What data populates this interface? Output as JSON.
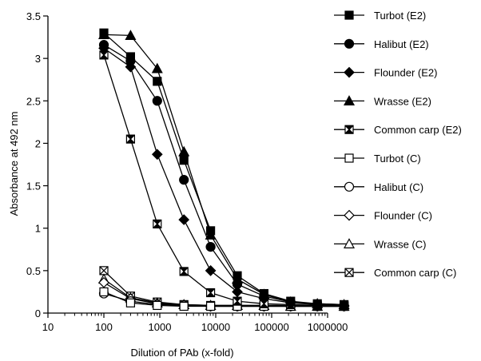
{
  "chart_data": {
    "type": "line",
    "xlabel": "Dilution of PAb (x-fold)",
    "ylabel": "Absorbance at  492 nm",
    "xscale": "log",
    "xlim": [
      10,
      1000000
    ],
    "ylim": [
      0,
      3.5
    ],
    "x_ticks": [
      10,
      100,
      1000,
      10000,
      100000,
      1000000
    ],
    "x_tick_labels": [
      "10",
      "100",
      "1000",
      "10000",
      "100000",
      "1000000"
    ],
    "y_ticks": [
      0,
      0.5,
      1,
      1.5,
      2,
      2.5,
      3,
      3.5
    ],
    "y_tick_labels": [
      "0",
      "0.5",
      "1",
      "1.5",
      "2",
      "2.5",
      "3",
      "3.5"
    ],
    "grid": false,
    "legend_position": "right",
    "x": [
      100,
      300,
      900,
      2700,
      8100,
      24300,
      72900,
      218700,
      656100,
      1968300
    ],
    "series": [
      {
        "name": "Turbot (E2)",
        "marker": "square-filled",
        "values": [
          3.3,
          3.02,
          2.73,
          1.8,
          0.97,
          0.44,
          0.23,
          0.14,
          0.11,
          0.1
        ]
      },
      {
        "name": "Halibut (E2)",
        "marker": "circle-filled",
        "values": [
          3.16,
          2.97,
          2.5,
          1.57,
          0.78,
          0.34,
          0.2,
          0.13,
          0.1,
          0.09
        ]
      },
      {
        "name": "Flounder (E2)",
        "marker": "diamond-filled",
        "values": [
          3.12,
          2.9,
          1.87,
          1.1,
          0.5,
          0.25,
          0.17,
          0.12,
          0.1,
          0.09
        ]
      },
      {
        "name": "Wrasse (E2)",
        "marker": "triangle-filled",
        "values": [
          3.28,
          3.27,
          2.88,
          1.9,
          0.92,
          0.4,
          0.22,
          0.13,
          0.11,
          0.1
        ]
      },
      {
        "name": "Common carp (E2)",
        "marker": "bowtie-square",
        "values": [
          3.04,
          2.05,
          1.05,
          0.49,
          0.24,
          0.14,
          0.11,
          0.1,
          0.09,
          0.09
        ]
      },
      {
        "name": "Turbot (C)",
        "marker": "square-open",
        "values": [
          0.25,
          0.12,
          0.09,
          0.08,
          0.08,
          0.08,
          0.08,
          0.08,
          0.08,
          0.08
        ]
      },
      {
        "name": "Halibut (C)",
        "marker": "circle-open",
        "values": [
          0.23,
          0.14,
          0.1,
          0.09,
          0.08,
          0.08,
          0.08,
          0.08,
          0.08,
          0.08
        ]
      },
      {
        "name": "Flounder (C)",
        "marker": "diamond-open",
        "values": [
          0.36,
          0.17,
          0.11,
          0.09,
          0.08,
          0.08,
          0.08,
          0.08,
          0.08,
          0.08
        ]
      },
      {
        "name": "Wrasse (C)",
        "marker": "triangle-open",
        "values": [
          0.4,
          0.18,
          0.12,
          0.1,
          0.09,
          0.09,
          0.09,
          0.08,
          0.08,
          0.08
        ]
      },
      {
        "name": "Common carp (C)",
        "marker": "xsquare-open",
        "values": [
          0.5,
          0.2,
          0.13,
          0.1,
          0.09,
          0.09,
          0.09,
          0.09,
          0.08,
          0.08
        ]
      }
    ]
  }
}
